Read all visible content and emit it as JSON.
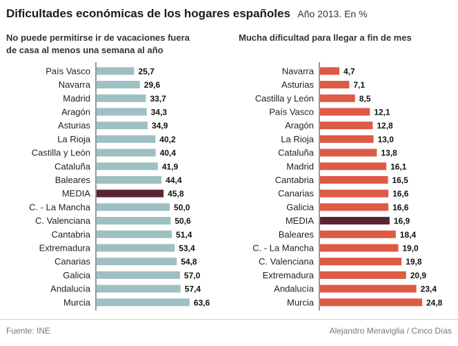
{
  "header": {
    "title": "Dificultades económicas de los hogares españoles",
    "subtitle": "Año 2013. En %"
  },
  "footer": {
    "source": "Fuente: INE",
    "credit": "Alejandro Meraviglia / Cinco Días"
  },
  "colors": {
    "left_bar": "#9ec0c3",
    "right_bar": "#dd5a44",
    "highlight": "#5c2334",
    "axis": "#777777"
  },
  "chart_data": [
    {
      "type": "bar",
      "orientation": "horizontal",
      "title_lines": [
        "No puede permitirse ir de vacaciones fuera",
        "de casa al menos una semana al año"
      ],
      "categories": [
        "País Vasco",
        "Navarra",
        "Madrid",
        "Aragón",
        "Asturias",
        "La Rioja",
        "Castilla y León",
        "Cataluña",
        "Baleares",
        "MEDIA",
        "C. - La Mancha",
        "C. Valenciana",
        "Cantabria",
        "Extremadura",
        "Canarias",
        "Galicia",
        "Andalucía",
        "Murcia"
      ],
      "values": [
        25.7,
        29.6,
        33.7,
        34.3,
        34.9,
        40.2,
        40.4,
        41.9,
        44.4,
        45.8,
        50.0,
        50.6,
        51.4,
        53.4,
        54.8,
        57.0,
        57.4,
        63.6
      ],
      "value_labels": [
        "25,7",
        "29,6",
        "33,7",
        "34,3",
        "34,9",
        "40,2",
        "40,4",
        "41,9",
        "44,4",
        "45,8",
        "50,0",
        "50,6",
        "51,4",
        "53,4",
        "54,8",
        "57,0",
        "57,4",
        "63,6"
      ],
      "highlight": "MEDIA",
      "xlim": [
        0,
        66
      ]
    },
    {
      "type": "bar",
      "orientation": "horizontal",
      "title_lines": [
        "Mucha dificultad para llegar a fin de mes"
      ],
      "categories": [
        "Navarra",
        "Asturias",
        "Castilla y León",
        "País Vasco",
        "Aragón",
        "La Rioja",
        "Cataluña",
        "Madrid",
        "Cantabria",
        "Canarias",
        "Galicia",
        "MEDIA",
        "Baleares",
        "C. - La Mancha",
        "C. Valenciana",
        "Extremadura",
        "Andalucía",
        "Murcia"
      ],
      "values": [
        4.7,
        7.1,
        8.5,
        12.1,
        12.8,
        13.0,
        13.8,
        16.1,
        16.5,
        16.6,
        16.6,
        16.9,
        18.4,
        19.0,
        19.8,
        20.9,
        23.4,
        24.8
      ],
      "value_labels": [
        "4,7",
        "7,1",
        "8,5",
        "12,1",
        "12,8",
        "13,0",
        "13,8",
        "16,1",
        "16,5",
        "16,6",
        "16,6",
        "16,9",
        "18,4",
        "19,0",
        "19,8",
        "20,9",
        "23,4",
        "24,8"
      ],
      "highlight": "MEDIA",
      "xlim": [
        0,
        24.8
      ]
    }
  ]
}
